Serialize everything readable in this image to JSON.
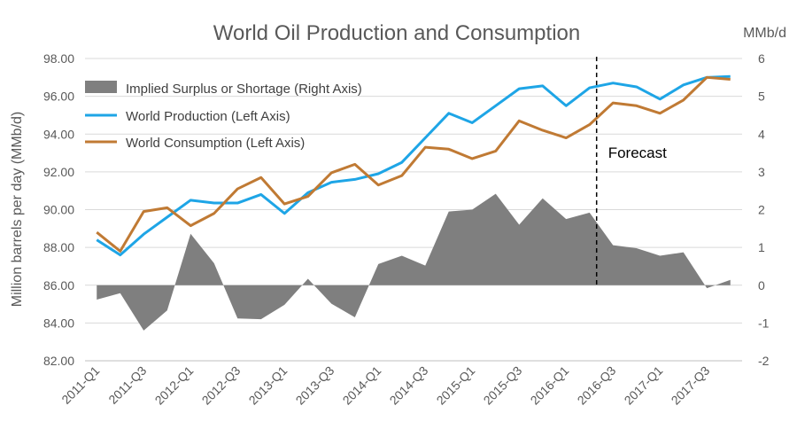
{
  "chart_data": {
    "type": "line",
    "title": "World Oil Production and Consumption",
    "ylabel": "Million barrels per day (MMb/d)",
    "y2label": "MMb/d",
    "ylim": [
      82,
      98
    ],
    "y2lim": [
      -2,
      6
    ],
    "y_ticks": [
      "98.00",
      "96.00",
      "94.00",
      "92.00",
      "90.00",
      "88.00",
      "86.00",
      "84.00",
      "82.00"
    ],
    "y2_ticks": [
      "6",
      "5",
      "4",
      "3",
      "2",
      "1",
      "0",
      "-1",
      "-2"
    ],
    "x": [
      "2011-Q1",
      "2011-Q2",
      "2011-Q3",
      "2011-Q4",
      "2012-Q1",
      "2012-Q2",
      "2012-Q3",
      "2012-Q4",
      "2013-Q1",
      "2013-Q2",
      "2013-Q3",
      "2013-Q4",
      "2014-Q1",
      "2014-Q2",
      "2014-Q3",
      "2014-Q4",
      "2015-Q1",
      "2015-Q2",
      "2015-Q3",
      "2015-Q4",
      "2016-Q1",
      "2016-Q2",
      "2016-Q3",
      "2016-Q4",
      "2017-Q1",
      "2017-Q2",
      "2017-Q3",
      "2017-Q4"
    ],
    "x_tick_labels": [
      "2011-Q1",
      "2011-Q3",
      "2012-Q1",
      "2012-Q3",
      "2013-Q1",
      "2013-Q3",
      "2014-Q1",
      "2014-Q3",
      "2015-Q1",
      "2015-Q3",
      "2016-Q1",
      "2016-Q3",
      "2017-Q1",
      "2017-Q3"
    ],
    "grid": true,
    "legend_position": "top-left",
    "series": [
      {
        "name": "Implied Surplus or Shortage (Right Axis)",
        "type": "area",
        "axis": "right",
        "color": "#7f7f7f",
        "values": [
          -0.38,
          -0.21,
          -1.2,
          -0.67,
          1.36,
          0.58,
          -0.88,
          -0.9,
          -0.52,
          0.17,
          -0.49,
          -0.85,
          0.56,
          0.78,
          0.52,
          1.95,
          2.0,
          2.42,
          1.6,
          2.3,
          1.75,
          1.92,
          1.06,
          0.98,
          0.78,
          0.87,
          -0.08,
          0.14
        ]
      },
      {
        "name": "World Production (Left Axis)",
        "type": "line",
        "axis": "left",
        "color": "#1ea5e6",
        "values": [
          88.4,
          87.6,
          88.7,
          89.6,
          90.5,
          90.35,
          90.35,
          90.8,
          89.8,
          90.9,
          91.45,
          91.6,
          91.9,
          92.5,
          93.8,
          95.1,
          94.6,
          95.5,
          96.4,
          96.55,
          95.5,
          96.45,
          96.7,
          96.5,
          95.85,
          96.6,
          97.0,
          97.05
        ]
      },
      {
        "name": "World Consumption (Left Axis)",
        "type": "line",
        "axis": "left",
        "color": "#c07a34",
        "values": [
          88.8,
          87.8,
          89.9,
          90.1,
          89.15,
          89.8,
          91.1,
          91.7,
          90.3,
          90.7,
          91.95,
          92.4,
          91.3,
          91.8,
          93.3,
          93.2,
          92.7,
          93.1,
          94.7,
          94.2,
          93.8,
          94.5,
          95.65,
          95.5,
          95.1,
          95.8,
          97.0,
          96.9
        ]
      }
    ],
    "annotations": [
      {
        "text": "Forecast",
        "x": "2016-Q3",
        "style": "dashed-vertical-line"
      }
    ]
  }
}
